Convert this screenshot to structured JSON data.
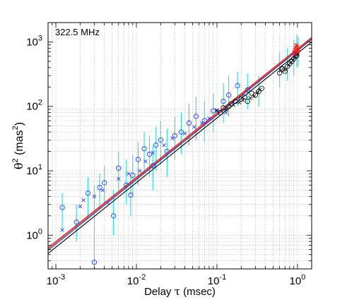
{
  "chart_data": {
    "type": "scatter",
    "annotation": "322.5 MHz",
    "xlabel_prefix": "Delay ",
    "xlabel_symbol": "τ",
    "xlabel_unit": " (msec)",
    "ylabel_prefix": "θ",
    "ylabel_sup": "2",
    "ylabel_mid": " (mas",
    "ylabel_sup2": "2",
    "ylabel_end": ")",
    "xscale": "log",
    "yscale": "log",
    "xlim": [
      0.0008,
      1.5
    ],
    "ylim": [
      0.3,
      2000
    ],
    "grid": true,
    "x_ticks": [
      {
        "value": 0.001,
        "base": "10",
        "exp": "-3"
      },
      {
        "value": 0.01,
        "base": "10",
        "exp": "-2"
      },
      {
        "value": 0.1,
        "base": "10",
        "exp": "-1"
      },
      {
        "value": 1,
        "base": "10",
        "exp": "0"
      }
    ],
    "y_ticks": [
      {
        "value": 1,
        "base": "10",
        "exp": "0"
      },
      {
        "value": 10,
        "base": "10",
        "exp": "1"
      },
      {
        "value": 100,
        "base": "10",
        "exp": "2"
      },
      {
        "value": 1000,
        "base": "10",
        "exp": "3"
      }
    ],
    "fit_lines": [
      {
        "color": "#000000",
        "x": [
          0.0008,
          1.5
        ],
        "y": [
          0.52,
          1000
        ]
      },
      {
        "color": "#1f3fd8",
        "x": [
          0.0008,
          1.5
        ],
        "y": [
          0.58,
          1100
        ]
      },
      {
        "color": "#d01a1a",
        "x": [
          0.0008,
          1.5
        ],
        "y": [
          0.61,
          1130
        ]
      },
      {
        "color": "#d01a1a",
        "x": [
          0.0008,
          1.5
        ],
        "y": [
          0.64,
          1180
        ]
      }
    ],
    "series": [
      {
        "marker": "circle",
        "color": "#2b3fe0",
        "x": [
          0.0012,
          0.0018,
          0.0025,
          0.003,
          0.0035,
          0.004,
          0.0052,
          0.006,
          0.0075,
          0.0085,
          0.009,
          0.0105,
          0.0125,
          0.0145,
          0.016,
          0.0175,
          0.02,
          0.024,
          0.03,
          0.036,
          0.045,
          0.055,
          0.07,
          0.09,
          0.12,
          0.14,
          0.18,
          0.24
        ],
        "y": [
          2.7,
          1.6,
          4.5,
          0.38,
          5.5,
          6.5,
          2.0,
          11,
          6.0,
          4.2,
          8.5,
          15,
          22,
          18,
          12,
          25,
          30,
          20,
          35,
          40,
          55,
          70,
          60,
          85,
          120,
          150,
          210,
          180
        ]
      },
      {
        "marker": "x",
        "color": "#2b3fe0",
        "x": [
          0.0012,
          0.002,
          0.0022,
          0.003,
          0.0038,
          0.0044,
          0.006,
          0.008,
          0.011,
          0.013,
          0.016,
          0.022,
          0.028,
          0.04,
          0.052,
          0.065,
          0.08,
          0.1,
          0.13
        ],
        "y": [
          1.2,
          2.8,
          3.5,
          4.0,
          5.0,
          3.2,
          7.5,
          9.0,
          10,
          14,
          19,
          25,
          32,
          38,
          48,
          55,
          65,
          88,
          80
        ]
      },
      {
        "marker": "circle",
        "color": "#111111",
        "x": [
          0.11,
          0.12,
          0.14,
          0.15,
          0.17,
          0.2,
          0.22,
          0.24,
          0.27,
          0.3,
          0.33,
          0.36,
          0.6,
          0.65,
          0.7,
          0.75,
          0.8,
          0.85,
          0.9,
          0.95,
          0.98
        ],
        "y": [
          80,
          95,
          100,
          110,
          120,
          130,
          140,
          120,
          160,
          150,
          170,
          190,
          330,
          380,
          350,
          420,
          460,
          500,
          550,
          600,
          620
        ]
      },
      {
        "marker": "x",
        "color": "#111111",
        "x": [
          0.1,
          0.13,
          0.16,
          0.19,
          0.21,
          0.26,
          0.29,
          0.32,
          0.34,
          0.62,
          0.68,
          0.72,
          0.78,
          0.83,
          0.88,
          0.93,
          1.0
        ],
        "y": [
          85,
          90,
          105,
          115,
          125,
          135,
          145,
          165,
          180,
          360,
          400,
          370,
          440,
          480,
          520,
          580,
          650
        ]
      },
      {
        "marker": "x",
        "color": "#ff1010",
        "x": [
          0.9,
          0.92,
          0.94,
          0.95,
          0.96,
          0.97,
          0.98,
          0.99,
          1.0,
          1.02,
          1.04
        ],
        "y": [
          700,
          760,
          820,
          650,
          880,
          720,
          900,
          780,
          840,
          700,
          760
        ]
      }
    ],
    "error_bars": {
      "color": "#2fd4e6",
      "bars": [
        [
          0.0012,
          1.2,
          4.5
        ],
        [
          0.0018,
          0.8,
          3.0
        ],
        [
          0.0025,
          2.0,
          8.0
        ],
        [
          0.003,
          0.3,
          6.0
        ],
        [
          0.0035,
          2.5,
          9.0
        ],
        [
          0.004,
          3.0,
          12
        ],
        [
          0.0052,
          1.0,
          5.0
        ],
        [
          0.006,
          5.0,
          20
        ],
        [
          0.0075,
          3.0,
          15
        ],
        [
          0.0085,
          2.0,
          9.0
        ],
        [
          0.009,
          4.0,
          18
        ],
        [
          0.0105,
          6.0,
          28
        ],
        [
          0.0125,
          9.0,
          40
        ],
        [
          0.0145,
          8.0,
          35
        ],
        [
          0.016,
          5.0,
          25
        ],
        [
          0.0175,
          10,
          48
        ],
        [
          0.02,
          12,
          60
        ],
        [
          0.024,
          8.0,
          45
        ],
        [
          0.03,
          15,
          70
        ],
        [
          0.036,
          18,
          80
        ],
        [
          0.045,
          25,
          110
        ],
        [
          0.055,
          30,
          140
        ],
        [
          0.07,
          28,
          120
        ],
        [
          0.09,
          40,
          160
        ],
        [
          0.12,
          55,
          230
        ],
        [
          0.14,
          70,
          300
        ],
        [
          0.18,
          100,
          350
        ],
        [
          0.24,
          90,
          320
        ],
        [
          0.33,
          100,
          300
        ],
        [
          0.6,
          200,
          700
        ],
        [
          0.75,
          250,
          800
        ],
        [
          0.9,
          300,
          1100
        ],
        [
          0.98,
          400,
          1300
        ],
        [
          1.02,
          420,
          1200
        ]
      ]
    }
  }
}
